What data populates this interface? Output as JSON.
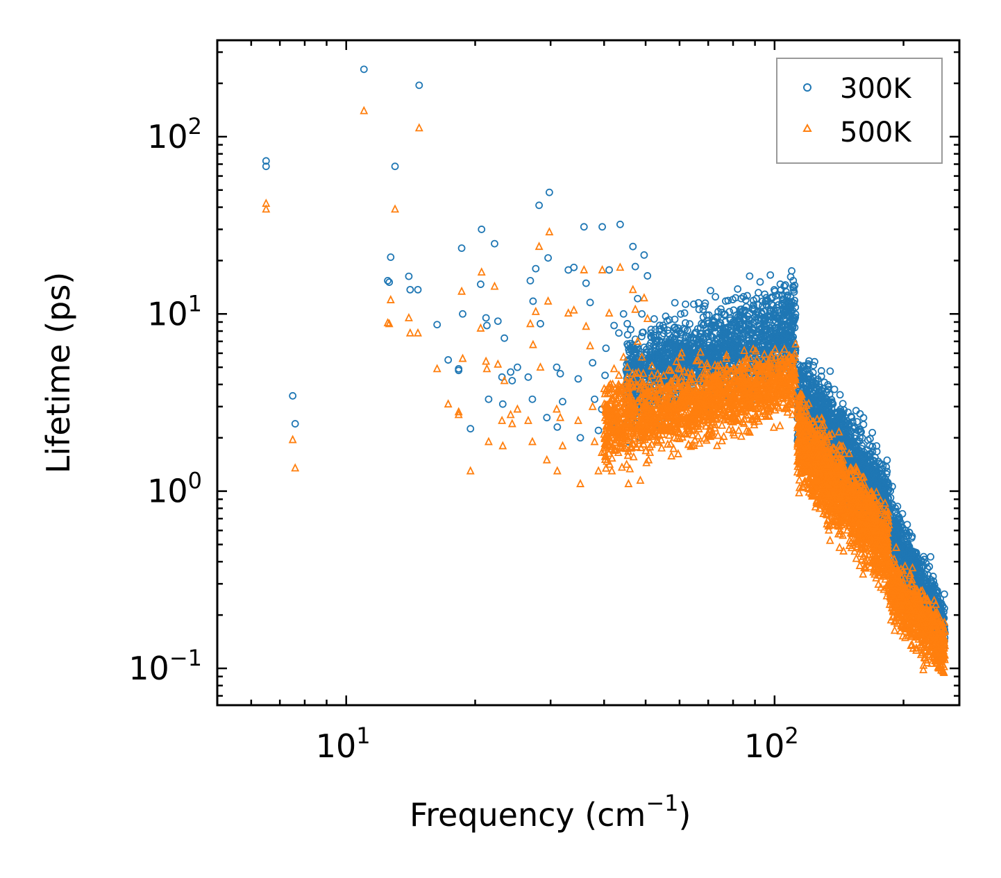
{
  "chart_data": {
    "type": "scatter",
    "title": "",
    "xlabel": "Frequency (cm",
    "xlabel_sup": "−1",
    "xlabel_close": ")",
    "ylabel": "Lifetime (ps)",
    "xscale": "log",
    "yscale": "log",
    "xlim": [
      5.0,
      270.0
    ],
    "ylim": [
      0.062,
      350.0
    ],
    "x_ticks": [
      {
        "value": 10,
        "base": "10",
        "exp": "1"
      },
      {
        "value": 100,
        "base": "10",
        "exp": "2"
      }
    ],
    "y_ticks": [
      {
        "value": 0.1,
        "base": "10",
        "exp": "−1"
      },
      {
        "value": 1,
        "base": "10",
        "exp": "0"
      },
      {
        "value": 10,
        "base": "10",
        "exp": "1"
      },
      {
        "value": 100,
        "base": "10",
        "exp": "2"
      }
    ],
    "legend_position": "top-right",
    "series": [
      {
        "name": "300K",
        "color": "#1f77b4",
        "marker": "circle",
        "x": [
          6.5,
          6.5,
          7.5,
          7.6,
          11.0,
          12.5,
          12.6,
          12.7,
          13.0,
          14.0,
          14.1,
          14.7,
          14.8,
          16.3,
          17.3,
          18.3,
          18.3,
          18.6,
          18.7,
          19.5,
          20.6,
          20.7,
          21.2,
          21.3,
          21.5,
          22.2,
          22.6,
          23.1,
          23.2,
          23.4,
          24.2,
          24.4,
          25.1,
          26.6,
          26.9,
          27.2,
          27.3,
          27.7,
          28.2,
          28.4,
          29.4,
          29.6,
          29.8,
          31.0,
          31.1,
          31.6,
          32.0,
          33.0,
          34.0,
          34.8,
          35.2,
          35.9,
          36.3,
          37.1,
          37.6,
          38.0,
          38.8,
          39.5,
          39.6,
          40.2,
          40.4,
          41.1,
          41.7,
          42.2,
          43.3,
          43.6,
          44.4,
          45.3,
          45.6,
          46.0,
          46.7,
          47.3,
          47.9,
          48.6,
          49.0,
          49.6,
          50.5,
          50.8
        ],
        "y": [
          73.0,
          68.0,
          3.45,
          2.4,
          240.0,
          15.4,
          15.1,
          20.9,
          68.0,
          16.3,
          13.7,
          13.7,
          195.0,
          8.7,
          5.5,
          4.9,
          4.8,
          23.5,
          10.0,
          2.25,
          14.7,
          30.0,
          9.5,
          8.6,
          3.3,
          24.9,
          9.1,
          4.4,
          3.1,
          7.3,
          4.7,
          4.2,
          5.0,
          4.4,
          15.4,
          3.3,
          11.8,
          18.0,
          41.0,
          8.8,
          2.6,
          20.7,
          48.5,
          5.0,
          2.3,
          4.6,
          3.2,
          17.7,
          18.3,
          4.3,
          2.0,
          31.0,
          14.9,
          11.6,
          5.3,
          3.3,
          2.2,
          2.9,
          31.0,
          4.5,
          6.4,
          17.7,
          2.3,
          8.6,
          7.8,
          32.0,
          10.0,
          8.8,
          1.9,
          6.8,
          24.0,
          18.5,
          12.2,
          2.0,
          10.0,
          21.5,
          16.4,
          2.6
        ]
      },
      {
        "name": "500K",
        "color": "#ff7f0e",
        "marker": "triangle",
        "x": [
          6.5,
          6.5,
          7.5,
          7.6,
          11.0,
          12.5,
          12.6,
          12.7,
          13.0,
          14.0,
          14.1,
          14.7,
          14.8,
          16.3,
          17.3,
          18.3,
          18.3,
          18.6,
          18.7,
          19.5,
          20.6,
          20.7,
          21.2,
          21.3,
          21.5,
          22.2,
          22.6,
          23.1,
          23.2,
          23.4,
          24.2,
          24.4,
          25.1,
          26.6,
          26.9,
          27.2,
          27.3,
          27.7,
          28.2,
          28.4,
          29.4,
          29.6,
          29.8,
          31.0,
          31.1,
          31.6,
          32.0,
          33.0,
          34.0,
          34.8,
          35.2,
          35.9,
          36.3,
          37.1,
          37.6,
          38.0,
          38.8,
          39.5,
          39.6,
          40.2,
          40.4,
          41.1,
          41.7,
          42.2,
          43.3,
          43.6,
          44.4,
          45.3,
          45.6,
          46.0,
          46.7,
          47.3,
          47.9,
          48.6,
          49.0,
          49.6,
          50.5,
          50.8
        ],
        "y": [
          42.0,
          39.0,
          1.95,
          1.35,
          140.0,
          8.9,
          8.8,
          12.0,
          39.0,
          9.5,
          7.8,
          7.8,
          112.0,
          4.9,
          3.1,
          2.8,
          2.7,
          13.4,
          5.6,
          1.3,
          8.3,
          17.2,
          5.4,
          4.9,
          1.9,
          14.3,
          5.2,
          2.5,
          1.8,
          4.2,
          2.7,
          2.4,
          2.9,
          2.5,
          8.8,
          1.9,
          6.7,
          10.3,
          24.0,
          5.0,
          1.5,
          11.8,
          29.0,
          2.9,
          1.3,
          2.6,
          1.8,
          10.1,
          10.5,
          2.5,
          1.1,
          17.7,
          8.5,
          6.6,
          3.0,
          1.9,
          1.3,
          1.65,
          17.7,
          2.6,
          3.7,
          10.1,
          1.3,
          4.9,
          4.5,
          18.3,
          5.7,
          5.0,
          1.1,
          3.9,
          13.7,
          10.6,
          7.0,
          1.15,
          5.7,
          12.3,
          9.4,
          1.5
        ]
      }
    ],
    "dense_regions": [
      {
        "series": "300K",
        "x_range": [
          45,
          112
        ],
        "y_center": [
          4.2,
          8.5
        ],
        "spread": [
          1.6,
          1.8
        ],
        "count": 1600
      },
      {
        "series": "300K",
        "x_range": [
          113,
          185
        ],
        "y_center": [
          3.5,
          0.8
        ],
        "spread": [
          1.7,
          1.6
        ],
        "count": 1500
      },
      {
        "series": "300K",
        "x_range": [
          185,
          250
        ],
        "y_center": [
          0.6,
          0.17
        ],
        "spread": [
          1.5,
          1.4
        ],
        "count": 700
      },
      {
        "series": "500K",
        "x_range": [
          40,
          112
        ],
        "y_center": [
          2.4,
          4.2
        ],
        "spread": [
          1.6,
          1.5
        ],
        "count": 1600
      },
      {
        "series": "500K",
        "x_range": [
          113,
          185
        ],
        "y_center": [
          2.0,
          0.45
        ],
        "spread": [
          1.7,
          1.6
        ],
        "count": 1500
      },
      {
        "series": "500K",
        "x_range": [
          185,
          250
        ],
        "y_center": [
          0.3,
          0.13
        ],
        "spread": [
          1.5,
          1.4
        ],
        "count": 700
      }
    ],
    "legend": [
      {
        "label": "300K",
        "color": "#1f77b4",
        "marker": "circle"
      },
      {
        "label": "500K",
        "color": "#ff7f0e",
        "marker": "triangle"
      }
    ]
  }
}
